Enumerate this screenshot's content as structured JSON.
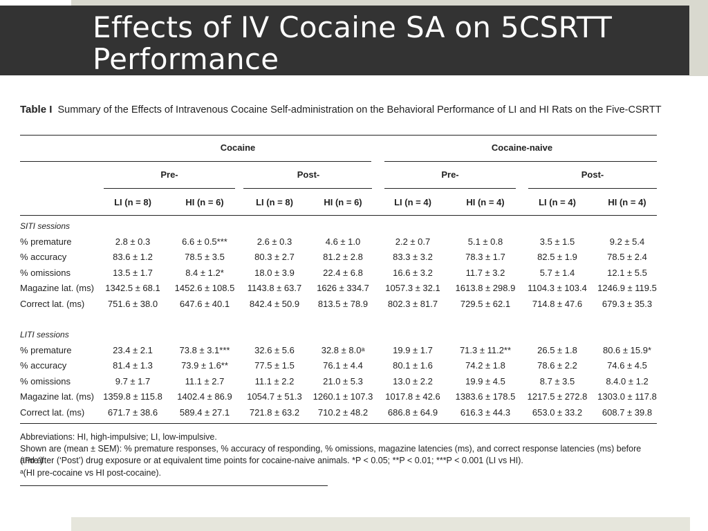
{
  "slide": {
    "title_line1": "Effects of IV Cocaine SA on 5CSRTT",
    "title_line2": "Performance"
  },
  "table": {
    "label": "Table I",
    "caption": "Summary of the Effects of Intravenous Cocaine Self-administration on the Behavioral Performance of LI and HI Rats on the Five-CSRTT",
    "group_headers": [
      "Cocaine",
      "Cocaine-naive"
    ],
    "phase_headers": [
      "Pre-",
      "Post-",
      "Pre-",
      "Post-"
    ],
    "column_headers": [
      "LI (n = 8)",
      "HI (n = 6)",
      "LI (n = 8)",
      "HI (n = 6)",
      "LI (n = 4)",
      "HI (n = 4)",
      "LI (n = 4)",
      "HI (n = 4)"
    ],
    "sections": [
      {
        "title": "SITI sessions",
        "rows": [
          {
            "label": "% premature",
            "values": [
              "2.8 ± 0.3",
              "6.6 ± 0.5***",
              "2.6 ± 0.3",
              "4.6 ± 1.0",
              "2.2 ± 0.7",
              "5.1 ± 0.8",
              "3.5 ± 1.5",
              "9.2 ± 5.4"
            ]
          },
          {
            "label": "% accuracy",
            "values": [
              "83.6 ± 1.2",
              "78.5 ± 3.5",
              "80.3 ± 2.7",
              "81.2 ± 2.8",
              "83.3 ± 3.2",
              "78.3 ± 1.7",
              "82.5 ± 1.9",
              "78.5 ± 2.4"
            ]
          },
          {
            "label": "% omissions",
            "values": [
              "13.5 ± 1.7",
              "8.4 ± 1.2*",
              "18.0 ± 3.9",
              "22.4 ± 6.8",
              "16.6 ± 3.2",
              "11.7 ± 3.2",
              "5.7 ± 1.4",
              "12.1 ± 5.5"
            ]
          },
          {
            "label": "Magazine lat. (ms)",
            "values": [
              "1342.5 ± 68.1",
              "1452.6 ± 108.5",
              "1143.8 ± 63.7",
              "1626 ± 334.7",
              "1057.3 ± 32.1",
              "1613.8 ± 298.9",
              "1104.3 ± 103.4",
              "1246.9 ± 119.5"
            ]
          },
          {
            "label": "Correct lat. (ms)",
            "values": [
              "751.6 ± 38.0",
              "647.6 ± 40.1",
              "842.4 ± 50.9",
              "813.5 ± 78.9",
              "802.3 ± 81.7",
              "729.5 ± 62.1",
              "714.8 ± 47.6",
              "679.3 ± 35.3"
            ]
          }
        ]
      },
      {
        "title": "LITI sessions",
        "rows": [
          {
            "label": "% premature",
            "values": [
              "23.4 ± 2.1",
              "73.8 ± 3.1***",
              "32.6 ± 5.6",
              "32.8 ± 8.0ᵃ",
              "19.9 ± 1.7",
              "71.3 ± 11.2**",
              "26.5 ± 1.8",
              "80.6 ± 15.9*"
            ]
          },
          {
            "label": "% accuracy",
            "values": [
              "81.4 ± 1.3",
              "73.9 ± 1.6**",
              "77.5 ± 1.5",
              "76.1 ± 4.4",
              "80.1 ± 1.6",
              "74.2 ± 1.8",
              "78.6 ± 2.2",
              "74.6 ± 4.5"
            ]
          },
          {
            "label": "% omissions",
            "values": [
              "9.7 ± 1.7",
              "11.1 ± 2.7",
              "11.1 ± 2.2",
              "21.0 ± 5.3",
              "13.0 ± 2.2",
              "19.9 ± 4.5",
              "8.7 ± 3.5",
              "8.4.0 ± 1.2"
            ]
          },
          {
            "label": "Magazine lat. (ms)",
            "values": [
              "1359.8 ± 115.8",
              "1402.4 ± 86.9",
              "1054.7 ± 51.3",
              "1260.1 ± 107.3",
              "1017.8 ± 42.6",
              "1383.6 ± 178.5",
              "1217.5 ± 272.8",
              "1303.0 ± 117.8"
            ]
          },
          {
            "label": "Correct lat. (ms)",
            "values": [
              "671.7 ± 38.6",
              "589.4 ± 27.1",
              "721.8 ± 63.2",
              "710.2 ± 48.2",
              "686.8 ± 64.9",
              "616.3 ± 44.3",
              "653.0 ± 33.2",
              "608.7 ± 39.8"
            ]
          }
        ]
      }
    ],
    "footnotes": {
      "abbreviations": "Abbreviations: HI, high-impulsive; LI, low-impulsive.",
      "shown_line1": "Shown are (mean ± SEM): % premature responses, % accuracy of responding, % omissions, magazine latencies (ms), and correct response latencies (ms) before (‘Pre’)",
      "shown_line2": "and after (‘Post’) drug exposure or at equivalent time points for cocaine-naive animals. *P < 0.05; **P < 0.01; ***P < 0.001 (LI vs HI).",
      "note_a": "ᵃ(HI pre-cocaine vs HI post-cocaine)."
    }
  }
}
